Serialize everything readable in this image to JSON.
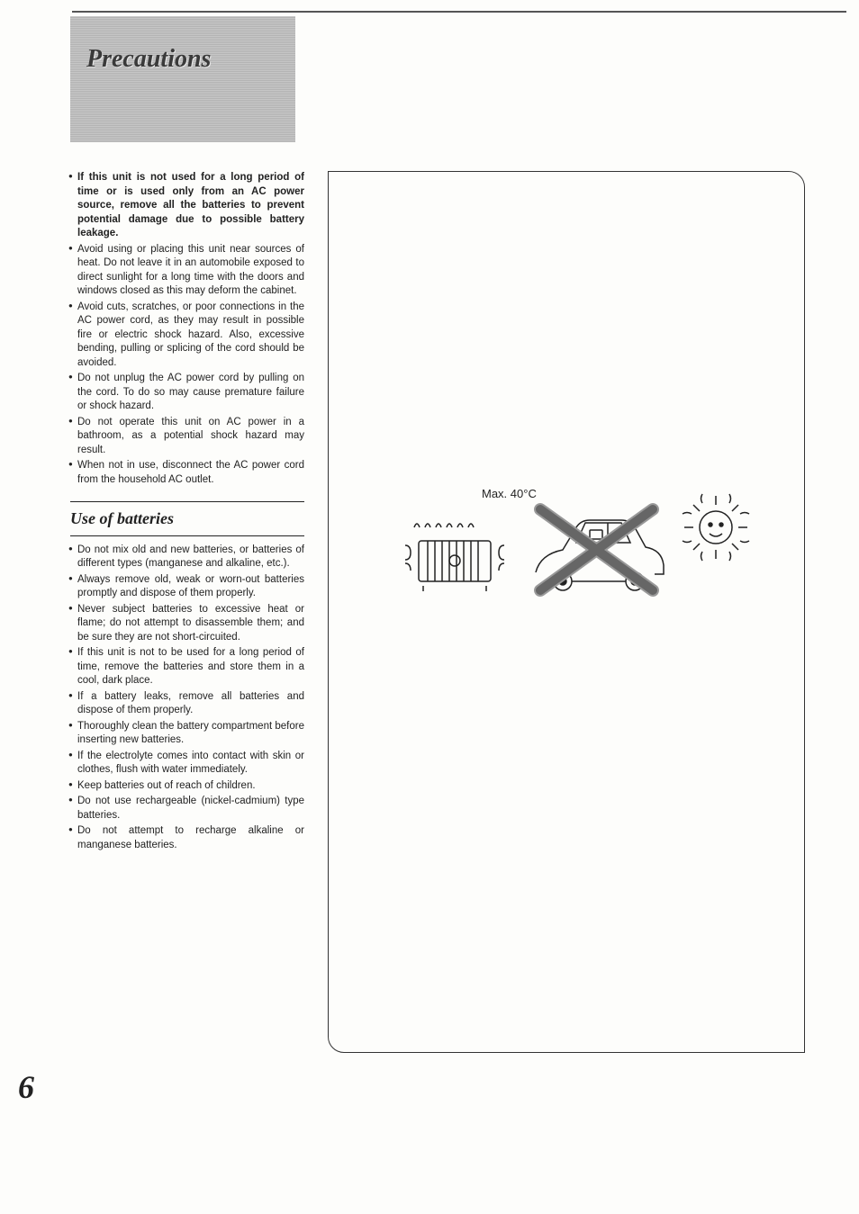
{
  "header": {
    "title": "Precautions"
  },
  "section1": {
    "items": [
      {
        "text": "If this unit is not used for a long period of time or is used only from an AC power source, remove all the batteries to prevent potential damage due to possible battery leakage.",
        "bold": true
      },
      {
        "text": "Avoid using or placing this unit near sources of heat. Do not leave it in an automobile exposed to direct sunlight for a long time with the doors and windows closed as this may deform the cabinet."
      },
      {
        "text": "Avoid cuts, scratches, or poor connections in the AC power cord, as they may result in possible fire or electric shock hazard. Also, excessive bending, pulling or splicing of the cord should be avoided."
      },
      {
        "text": "Do not unplug the AC power cord by pulling on the cord. To do so may cause premature failure or shock hazard."
      },
      {
        "text": "Do not operate this unit on AC power in a bathroom, as a potential shock hazard may result."
      },
      {
        "text": "When not in use, disconnect the AC power cord from the household AC outlet."
      }
    ]
  },
  "subheading": "Use of batteries",
  "section2": {
    "items": [
      {
        "text": "Do not mix old and new batteries, or batteries of different types (manganese and alkaline, etc.)."
      },
      {
        "text": "Always remove old, weak or worn-out batteries promptly and dispose of them properly."
      },
      {
        "text": "Never subject batteries to excessive heat or flame; do not attempt to disassemble them; and be sure they are not short-circuited."
      },
      {
        "text": "If this unit is not to be used for a long period of time, remove the batteries and store them in a cool, dark place."
      },
      {
        "text": "If a battery leaks, remove all batteries and dispose of them properly."
      },
      {
        "text": "Thoroughly clean the battery compartment before inserting new batteries."
      },
      {
        "text": "If the electrolyte comes into contact with skin or clothes, flush with water immediately."
      },
      {
        "text": "Keep batteries out of reach of children."
      },
      {
        "text": "Do not use rechargeable (nickel-cadmium) type batteries."
      },
      {
        "text": "Do not attempt to recharge alkaline or manganese batteries."
      }
    ]
  },
  "figure": {
    "max_temp_label": "Max. 40°C"
  },
  "page_number": "6"
}
